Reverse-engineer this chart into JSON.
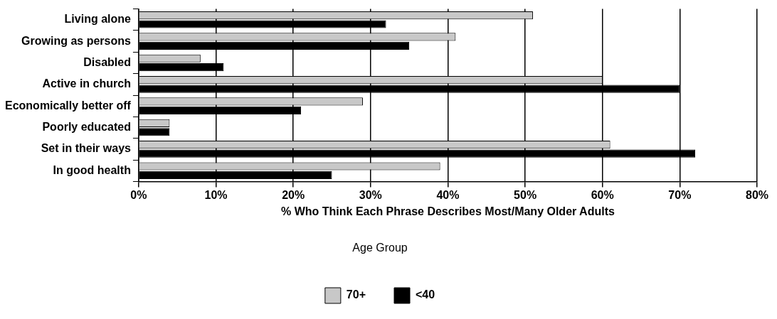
{
  "chart_data": {
    "type": "bar",
    "orientation": "horizontal",
    "xlabel": "% Who Think Each Phrase Describes Most/Many Older Adults",
    "legend_title": "Age Group",
    "legend": "bottom",
    "grid": "x",
    "categories": [
      "Living alone",
      "Growing as persons",
      "Disabled",
      "Active in church",
      "Economically better off",
      "Poorly educated",
      "Set in their ways",
      "In good health"
    ],
    "series": [
      {
        "name": "70+",
        "color": "#c8c8c8",
        "values": [
          51,
          41,
          8,
          60,
          29,
          4,
          61,
          39
        ]
      },
      {
        "name": "<40",
        "color": "#000000",
        "values": [
          32,
          35,
          11,
          70,
          21,
          4,
          72,
          25
        ]
      }
    ],
    "xlim": [
      0,
      80
    ],
    "xticks": [
      {
        "value": 0,
        "label": "0%"
      },
      {
        "value": 10,
        "label": "10%"
      },
      {
        "value": 20,
        "label": "20%"
      },
      {
        "value": 30,
        "label": "30%"
      },
      {
        "value": 40,
        "label": "40%"
      },
      {
        "value": 50,
        "label": "50%"
      },
      {
        "value": 60,
        "label": "60%"
      },
      {
        "value": 70,
        "label": "70%"
      },
      {
        "value": 80,
        "label": "80%"
      }
    ]
  }
}
